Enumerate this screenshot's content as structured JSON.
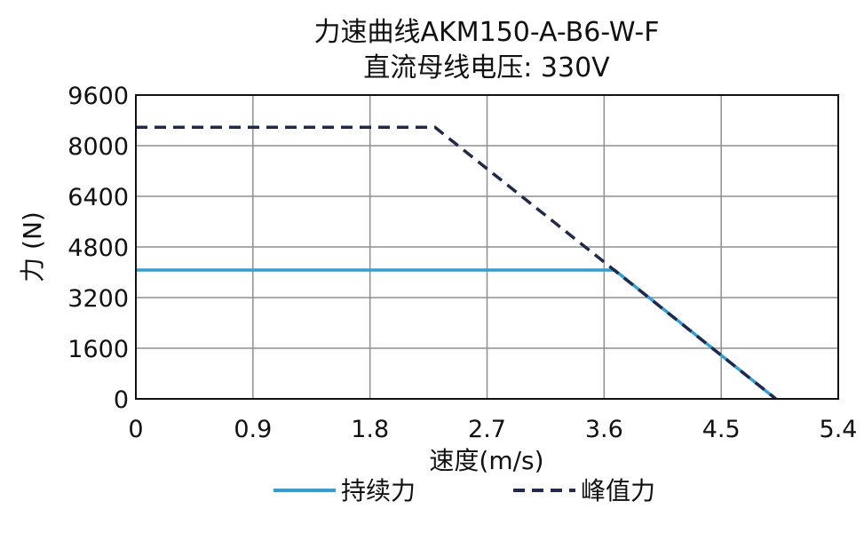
{
  "chart_data": {
    "type": "line",
    "title": "力速曲线AKM150-A-B6-W-F",
    "subtitle": "直流母线电压: 330V",
    "xlabel": "速度(m/s)",
    "ylabel": "力 (N)",
    "xlim": [
      0,
      5.4
    ],
    "ylim": [
      0,
      9600
    ],
    "xticks": [
      "0",
      "0.9",
      "1.8",
      "2.7",
      "3.6",
      "4.5",
      "5.4"
    ],
    "yticks": [
      "0",
      "1600",
      "3200",
      "4800",
      "6400",
      "8000",
      "9600"
    ],
    "grid": true,
    "legend_position": "bottom",
    "series": [
      {
        "name": "持续力",
        "color": "#2e9fd8",
        "line_style": "solid",
        "x": [
          0,
          3.68,
          4.92
        ],
        "y": [
          4070,
          4070,
          0
        ]
      },
      {
        "name": "峰值力",
        "color": "#1f2a4d",
        "line_style": "dashed",
        "x": [
          0,
          2.3,
          4.92
        ],
        "y": [
          8580,
          8580,
          0
        ]
      }
    ]
  }
}
